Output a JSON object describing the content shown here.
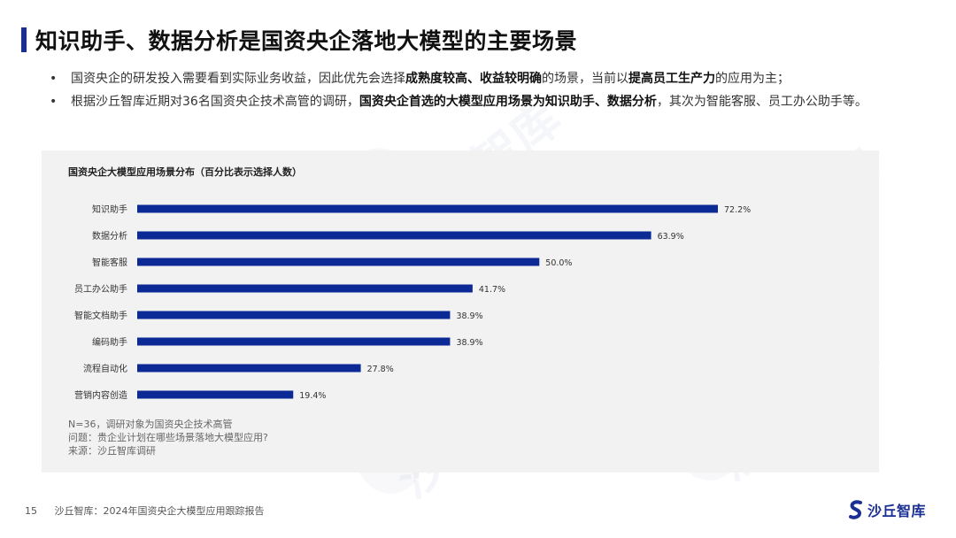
{
  "header": {
    "title": "知识助手、数据分析是国资央企落地大模型的主要场景"
  },
  "bullets": {
    "b1_pre": "国资央企的研发投入需要看到实际业务收益，因此优先会选择",
    "b1_bold1": "成熟度较高、收益较明确",
    "b1_mid": "的场景，当前以",
    "b1_bold2": "提高员工生产力",
    "b1_post": "的应用为主；",
    "b2_pre": "根据沙丘智库近期对36名国资央企技术高管的调研，",
    "b2_bold": "国资央企首选的大模型应用场景为知识助手、数据分析",
    "b2_post": "，其次为智能客服、员工办公助手等。"
  },
  "chart_data": {
    "type": "bar",
    "orientation": "horizontal",
    "title": "国资央企大模型应用场景分布（百分比表示选择人数）",
    "categories": [
      "知识助手",
      "数据分析",
      "智能客服",
      "员工办公助手",
      "智能文档助手",
      "编码助手",
      "流程自动化",
      "营销内容创造"
    ],
    "values": [
      72.2,
      63.9,
      50.0,
      41.7,
      38.9,
      38.9,
      27.8,
      19.4
    ],
    "value_labels": [
      "72.2%",
      "63.9%",
      "50.0%",
      "41.7%",
      "38.9%",
      "38.9%",
      "27.8%",
      "19.4%"
    ],
    "xlim": [
      0,
      72.2
    ],
    "bar_color": "#0b2a96",
    "grid": false,
    "legend": "none"
  },
  "notes": {
    "line1": "N=36，调研对象为国资央企技术高管",
    "line2": "问题：贵企业计划在哪些场景落地大模型应用?",
    "line3": "来源：沙丘智库调研"
  },
  "watermark": {
    "text": "沙丘智库"
  },
  "footer": {
    "page": "15",
    "source": "沙丘智库：2024年国资央企大模型应用跟踪报告"
  },
  "logo": {
    "text": "沙丘智库",
    "color": "#1a2f94"
  }
}
